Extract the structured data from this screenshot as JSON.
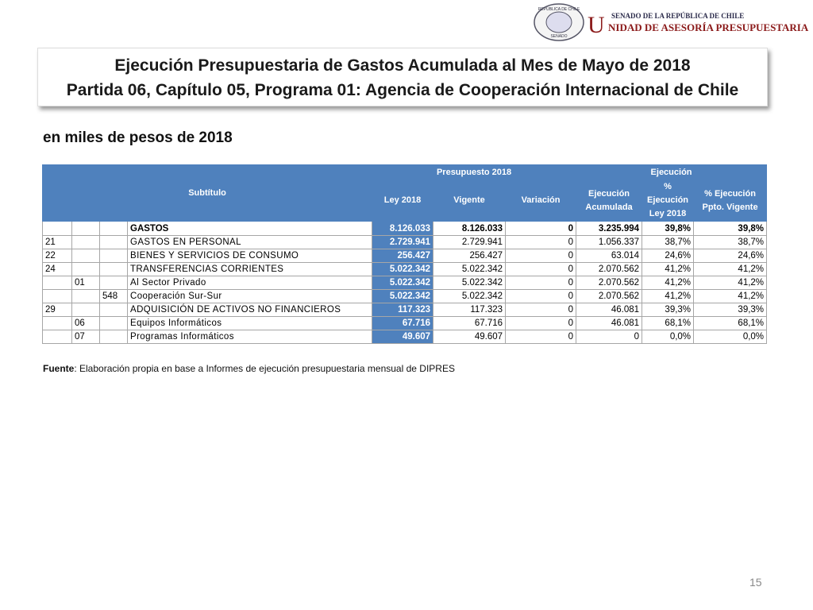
{
  "header": {
    "seal_top": "REPÚBLICA DE CHILE",
    "seal_bottom": "SENADO",
    "org_top": "SENADO DE LA REPÚBLICA DE CHILE",
    "org_initial": "U",
    "org_main": "NIDAD DE ASESORÍA PRESUPUESTARIA"
  },
  "title": {
    "line1": "Ejecución Presupuestaria de Gastos Acumulada al Mes de Mayo de 2018",
    "line2": "Partida 06, Capítulo 05, Programa 01: Agencia de Cooperación Internacional de Chile"
  },
  "subtitle": "en miles de pesos de 2018",
  "table": {
    "header": {
      "subtitulo": "Subtítulo",
      "presupuesto": "Presupuesto 2018",
      "ejecucion": "Ejecución",
      "columns": [
        "Ley 2018",
        "Vigente",
        "Variación",
        "Ejecución Acumulada",
        "% Ejecución Ley 2018",
        "% Ejecución Ppto. Vigente"
      ]
    },
    "rows": [
      [
        null,
        null,
        null,
        "GASTOS",
        "8.126.033",
        "8.126.033",
        "0",
        "3.235.994",
        "39,8%",
        "39,8%"
      ],
      [
        "21",
        null,
        null,
        "GASTOS EN PERSONAL",
        "2.729.941",
        "2.729.941",
        "0",
        "1.056.337",
        "38,7%",
        "38,7%"
      ],
      [
        "22",
        null,
        null,
        "BIENES Y SERVICIOS DE CONSUMO",
        "256.427",
        "256.427",
        "0",
        "63.014",
        "24,6%",
        "24,6%"
      ],
      [
        "24",
        null,
        null,
        "TRANSFERENCIAS CORRIENTES",
        "5.022.342",
        "5.022.342",
        "0",
        "2.070.562",
        "41,2%",
        "41,2%"
      ],
      [
        null,
        "01",
        null,
        "Al Sector Privado",
        "5.022.342",
        "5.022.342",
        "0",
        "2.070.562",
        "41,2%",
        "41,2%"
      ],
      [
        null,
        null,
        "548",
        "Cooperación Sur-Sur",
        "5.022.342",
        "5.022.342",
        "0",
        "2.070.562",
        "41,2%",
        "41,2%"
      ],
      [
        "29",
        null,
        null,
        "ADQUISICIÓN DE ACTIVOS NO FINANCIEROS",
        "117.323",
        "117.323",
        "0",
        "46.081",
        "39,3%",
        "39,3%"
      ],
      [
        null,
        "06",
        null,
        "Equipos Informáticos",
        "67.716",
        "67.716",
        "0",
        "46.081",
        "68,1%",
        "68,1%"
      ],
      [
        null,
        "07",
        null,
        "Programas Informáticos",
        "49.607",
        "49.607",
        "0",
        "0",
        "0,0%",
        "0,0%"
      ]
    ]
  },
  "source": {
    "label": "Fuente",
    "text": ": Elaboración propia en base  a Informes de ejecución presupuestaria mensual de DIPRES"
  },
  "page_number": "15"
}
